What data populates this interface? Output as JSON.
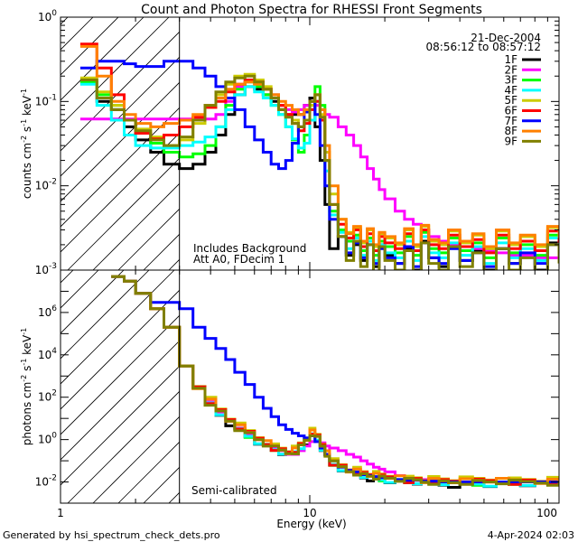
{
  "chart_data": [
    {
      "type": "line",
      "title": "Count and Photon Spectra for RHESSI Front Segments",
      "ylabel": "counts cm^-2 s^-1 keV^-1",
      "ylabel_parts": {
        "base": "counts cm",
        "e1": "-2",
        "mid1": " s",
        "e2": "-1",
        "mid2": " keV",
        "e3": "-1"
      },
      "xscale": "log",
      "yscale": "log",
      "xlim": [
        1,
        100
      ],
      "ylim": [
        0.001,
        1
      ],
      "y_ticks": [
        {
          "v": 1,
          "b": "10",
          "e": "0"
        },
        {
          "v": 0.1,
          "b": "10",
          "e": "-1"
        },
        {
          "v": 0.01,
          "b": "10",
          "e": "-2"
        },
        {
          "v": 0.001,
          "b": "10",
          "e": "-3"
        }
      ],
      "date": "21-Dec-2004",
      "time_range": "08:56:12 to 08:57:12",
      "annotations": [
        "Includes Background",
        "Att A0, FDecim 1"
      ],
      "threshold_line_keV": 3,
      "legend_position": "top-right",
      "energy": [
        1.2,
        1.4,
        1.6,
        1.8,
        2.0,
        2.3,
        2.6,
        3.0,
        3.4,
        3.8,
        4.2,
        4.6,
        5.0,
        5.5,
        6.0,
        6.5,
        7.0,
        7.5,
        8.0,
        8.5,
        9.0,
        9.5,
        10.0,
        10.5,
        11.0,
        11.5,
        12.0,
        13.0,
        14.0,
        15.0,
        16.0,
        17.0,
        18.0,
        19.0,
        20.0,
        22.0,
        24.0,
        26.0,
        28.0,
        30.0,
        33.0,
        36.0,
        40.0,
        45.0,
        50.0,
        56.0,
        63.0,
        70.0,
        80.0,
        90.0,
        100.0
      ],
      "series": [
        {
          "name": "1F",
          "color": "#000000",
          "values": [
            0.17,
            0.1,
            0.08,
            0.05,
            0.035,
            0.025,
            0.018,
            0.016,
            0.018,
            0.025,
            0.04,
            0.07,
            0.12,
            0.15,
            0.14,
            0.12,
            0.1,
            0.08,
            0.07,
            0.07,
            0.07,
            0.09,
            0.11,
            0.05,
            0.02,
            0.006,
            0.0018,
            0.0025,
            0.0015,
            0.002,
            0.0013,
            0.0022,
            0.0011,
            0.002,
            0.0015,
            0.0012,
            0.0018,
            0.001,
            0.0022,
            0.0014,
            0.0011,
            0.002,
            0.0013,
            0.0017,
            0.001,
            0.0018,
            0.0012,
            0.0015,
            0.001,
            0.0021,
            0.0013
          ]
        },
        {
          "name": "2F",
          "color": "#ff00ff",
          "values": [
            0.062,
            0.062,
            0.062,
            0.062,
            0.062,
            0.062,
            0.062,
            0.062,
            0.062,
            0.062,
            0.07,
            0.1,
            0.15,
            0.18,
            0.16,
            0.14,
            0.12,
            0.09,
            0.08,
            0.075,
            0.08,
            0.09,
            0.1,
            0.09,
            0.08,
            0.07,
            0.065,
            0.05,
            0.04,
            0.03,
            0.022,
            0.016,
            0.012,
            0.009,
            0.007,
            0.005,
            0.004,
            0.0035,
            0.003,
            0.0025,
            0.0022,
            0.002,
            0.0019,
            0.0018,
            0.0017,
            0.0016,
            0.0015,
            0.0015,
            0.0014,
            0.0014,
            0.0013
          ]
        },
        {
          "name": "3F",
          "color": "#00ff00",
          "values": [
            0.17,
            0.12,
            0.09,
            0.06,
            0.042,
            0.032,
            0.025,
            0.022,
            0.024,
            0.03,
            0.05,
            0.09,
            0.14,
            0.17,
            0.15,
            0.12,
            0.09,
            0.07,
            0.05,
            0.035,
            0.025,
            0.04,
            0.09,
            0.15,
            0.09,
            0.02,
            0.005,
            0.003,
            0.0022,
            0.0026,
            0.0017,
            0.0024,
            0.0015,
            0.0022,
            0.0019,
            0.0016,
            0.0025,
            0.0015,
            0.0028,
            0.0018,
            0.0016,
            0.0024,
            0.0017,
            0.0021,
            0.0014,
            0.0024,
            0.0016,
            0.002,
            0.0015,
            0.0026,
            0.0019
          ]
        },
        {
          "name": "4F",
          "color": "#00ffff",
          "values": [
            0.16,
            0.09,
            0.06,
            0.04,
            0.03,
            0.028,
            0.028,
            0.03,
            0.033,
            0.038,
            0.05,
            0.08,
            0.12,
            0.15,
            0.13,
            0.11,
            0.09,
            0.07,
            0.05,
            0.036,
            0.028,
            0.032,
            0.06,
            0.1,
            0.06,
            0.015,
            0.0045,
            0.0028,
            0.0018,
            0.0024,
            0.0015,
            0.0022,
            0.0013,
            0.002,
            0.0016,
            0.0014,
            0.0022,
            0.0013,
            0.0025,
            0.0016,
            0.0014,
            0.0021,
            0.0015,
            0.0019,
            0.0012,
            0.0021,
            0.0014,
            0.0018,
            0.0013,
            0.0024,
            0.0016
          ]
        },
        {
          "name": "5F",
          "color": "#cccc00",
          "values": [
            0.19,
            0.13,
            0.09,
            0.06,
            0.047,
            0.038,
            0.03,
            0.035,
            0.055,
            0.085,
            0.12,
            0.16,
            0.2,
            0.21,
            0.18,
            0.15,
            0.12,
            0.09,
            0.07,
            0.06,
            0.05,
            0.06,
            0.09,
            0.12,
            0.07,
            0.025,
            0.008,
            0.004,
            0.0028,
            0.0032,
            0.0021,
            0.003,
            0.0019,
            0.0027,
            0.0024,
            0.002,
            0.003,
            0.0019,
            0.0033,
            0.0022,
            0.002,
            0.0029,
            0.0021,
            0.0026,
            0.0018,
            0.0029,
            0.002,
            0.0025,
            0.0019,
            0.0032,
            0.0023
          ]
        },
        {
          "name": "6F",
          "color": "#ff0000",
          "values": [
            0.48,
            0.25,
            0.12,
            0.06,
            0.042,
            0.036,
            0.04,
            0.05,
            0.065,
            0.085,
            0.1,
            0.13,
            0.16,
            0.18,
            0.17,
            0.14,
            0.11,
            0.09,
            0.07,
            0.055,
            0.045,
            0.055,
            0.08,
            0.1,
            0.06,
            0.02,
            0.006,
            0.0035,
            0.0024,
            0.003,
            0.0019,
            0.0027,
            0.0017,
            0.0025,
            0.0021,
            0.0018,
            0.0027,
            0.0017,
            0.003,
            0.002,
            0.0018,
            0.0026,
            0.0019,
            0.0023,
            0.0016,
            0.0026,
            0.0018,
            0.0022,
            0.0017,
            0.0029,
            0.0021
          ]
        },
        {
          "name": "7F",
          "color": "#0000ff",
          "values": [
            0.25,
            0.3,
            0.3,
            0.28,
            0.26,
            0.26,
            0.3,
            0.3,
            0.25,
            0.2,
            0.15,
            0.11,
            0.08,
            0.05,
            0.035,
            0.025,
            0.018,
            0.016,
            0.02,
            0.032,
            0.05,
            0.075,
            0.1,
            0.07,
            0.03,
            0.01,
            0.004,
            0.0025,
            0.0016,
            0.0021,
            0.0014,
            0.002,
            0.0012,
            0.0018,
            0.0014,
            0.0012,
            0.0019,
            0.0011,
            0.0021,
            0.0014,
            0.0012,
            0.0018,
            0.0013,
            0.0016,
            0.0011,
            0.0018,
            0.0012,
            0.0016,
            0.0012,
            0.002,
            0.0014
          ]
        },
        {
          "name": "8F",
          "color": "#ff8000",
          "values": [
            0.45,
            0.2,
            0.1,
            0.07,
            0.055,
            0.05,
            0.055,
            0.06,
            0.07,
            0.09,
            0.11,
            0.14,
            0.16,
            0.17,
            0.16,
            0.14,
            0.12,
            0.1,
            0.09,
            0.08,
            0.07,
            0.08,
            0.1,
            0.12,
            0.08,
            0.03,
            0.01,
            0.004,
            0.0027,
            0.0033,
            0.0022,
            0.0031,
            0.002,
            0.0028,
            0.0025,
            0.0021,
            0.0031,
            0.002,
            0.0034,
            0.0023,
            0.0021,
            0.003,
            0.0022,
            0.0027,
            0.0019,
            0.003,
            0.0021,
            0.0026,
            0.002,
            0.0033,
            0.0024
          ]
        },
        {
          "name": "9F",
          "color": "#808000",
          "values": [
            0.18,
            0.11,
            0.08,
            0.06,
            0.045,
            0.035,
            0.03,
            0.038,
            0.06,
            0.09,
            0.13,
            0.17,
            0.19,
            0.2,
            0.17,
            0.14,
            0.11,
            0.08,
            0.065,
            0.055,
            0.05,
            0.06,
            0.1,
            0.12,
            0.065,
            0.02,
            0.006,
            0.0025,
            0.0013,
            0.0022,
            0.0011,
            0.002,
            0.0009,
            0.0019,
            0.0013,
            0.001,
            0.0017,
            0.0009,
            0.0021,
            0.0012,
            0.001,
            0.0019,
            0.0011,
            0.0016,
            0.0009,
            0.0018,
            0.001,
            0.0014,
            0.0009,
            0.002,
            0.0012
          ]
        }
      ]
    },
    {
      "type": "line",
      "ylabel": "photons cm^-2 s^-1 keV^-1",
      "ylabel_parts": {
        "base": "photons cm",
        "e1": "-2",
        "mid1": " s",
        "e2": "-1",
        "mid2": " keV",
        "e3": "-1"
      },
      "xlabel": "Energy (keV)",
      "xscale": "log",
      "yscale": "log",
      "xlim": [
        1,
        100
      ],
      "ylim": [
        0.001,
        100000000
      ],
      "x_ticks": [
        {
          "v": 1,
          "label": "1"
        },
        {
          "v": 10,
          "label": "10"
        },
        {
          "v": 100,
          "label": "100"
        }
      ],
      "y_ticks": [
        {
          "v": 1000000,
          "b": "10",
          "e": "6"
        },
        {
          "v": 10000,
          "b": "10",
          "e": "4"
        },
        {
          "v": 100,
          "b": "10",
          "e": "2"
        },
        {
          "v": 1,
          "b": "10",
          "e": "0"
        },
        {
          "v": 0.01,
          "b": "10",
          "e": "-2"
        }
      ],
      "annotations": [
        "Semi-calibrated"
      ],
      "threshold_line_keV": 3,
      "energy": [
        1.6,
        1.8,
        2.0,
        2.3,
        2.6,
        3.0,
        3.4,
        3.8,
        4.2,
        4.6,
        5.0,
        5.5,
        6.0,
        6.5,
        7.0,
        7.5,
        8.0,
        8.5,
        9.0,
        9.5,
        10.0,
        10.5,
        11.0,
        11.5,
        12.0,
        13.0,
        14.0,
        15.0,
        16.0,
        17.0,
        18.0,
        19.0,
        20.0,
        22.0,
        24.0,
        26.0,
        28.0,
        30.0,
        33.0,
        36.0,
        40.0,
        45.0,
        50.0,
        56.0,
        63.0,
        70.0,
        80.0,
        90.0,
        100.0
      ],
      "base_values": [
        50000000,
        30000000,
        8000000,
        1500000,
        200000,
        3000,
        300,
        60,
        20,
        8,
        3.5,
        1.8,
        1.0,
        0.6,
        0.4,
        0.3,
        0.25,
        0.3,
        0.5,
        1.0,
        2.0,
        1.2,
        0.5,
        0.2,
        0.08,
        0.05,
        0.035,
        0.03,
        0.022,
        0.02,
        0.018,
        0.016,
        0.015,
        0.013,
        0.012,
        0.012,
        0.011,
        0.011,
        0.01,
        0.01,
        0.01,
        0.01,
        0.01,
        0.01,
        0.01,
        0.01,
        0.01,
        0.01,
        0.01
      ],
      "series": [
        {
          "name": "1F",
          "color": "#000000",
          "scale": 0.8
        },
        {
          "name": "2F",
          "color": "#ff00ff",
          "scale": 0.6
        },
        {
          "name": "3F",
          "color": "#00ff00",
          "scale": 1.0
        },
        {
          "name": "4F",
          "color": "#00ffff",
          "scale": 0.9
        },
        {
          "name": "5F",
          "color": "#cccc00",
          "scale": 1.4
        },
        {
          "name": "6F",
          "color": "#ff0000",
          "scale": 1.1
        },
        {
          "name": "7F",
          "color": "#0000ff",
          "scale": 1.0
        },
        {
          "name": "8F",
          "color": "#ff8000",
          "scale": 1.2
        },
        {
          "name": "9F",
          "color": "#808000",
          "scale": 1.0
        }
      ],
      "series_7F_values": [
        50000000,
        30000000,
        8000000,
        3000000,
        3000000,
        1500000,
        200000,
        60000,
        20000,
        6000,
        1500,
        400,
        100,
        30,
        12,
        5,
        3,
        2,
        1.5,
        1.2,
        1.5,
        0.8,
        0.4,
        0.2,
        0.1,
        0.05,
        0.035,
        0.03,
        0.022,
        0.02,
        0.018,
        0.016,
        0.015,
        0.013,
        0.012,
        0.012,
        0.011,
        0.011,
        0.01,
        0.01,
        0.01,
        0.01,
        0.01,
        0.01,
        0.01,
        0.01,
        0.01,
        0.01,
        0.01
      ],
      "series_2F_values": [
        50000000,
        30000000,
        8000000,
        1500000,
        200000,
        3000,
        300,
        60,
        20,
        8,
        3.5,
        1.8,
        1.0,
        0.6,
        0.4,
        0.3,
        0.2,
        0.2,
        0.3,
        0.5,
        0.8,
        0.9,
        0.7,
        0.5,
        0.4,
        0.3,
        0.2,
        0.15,
        0.1,
        0.07,
        0.05,
        0.04,
        0.03,
        0.02,
        0.016,
        0.014,
        0.013,
        0.012,
        0.011,
        0.011,
        0.01,
        0.01,
        0.01,
        0.01,
        0.01,
        0.01,
        0.01,
        0.01,
        0.01
      ]
    }
  ],
  "footer": {
    "generated_by": "Generated by hsi_spectrum_check_dets.pro",
    "timestamp": "4-Apr-2024 02:03"
  }
}
